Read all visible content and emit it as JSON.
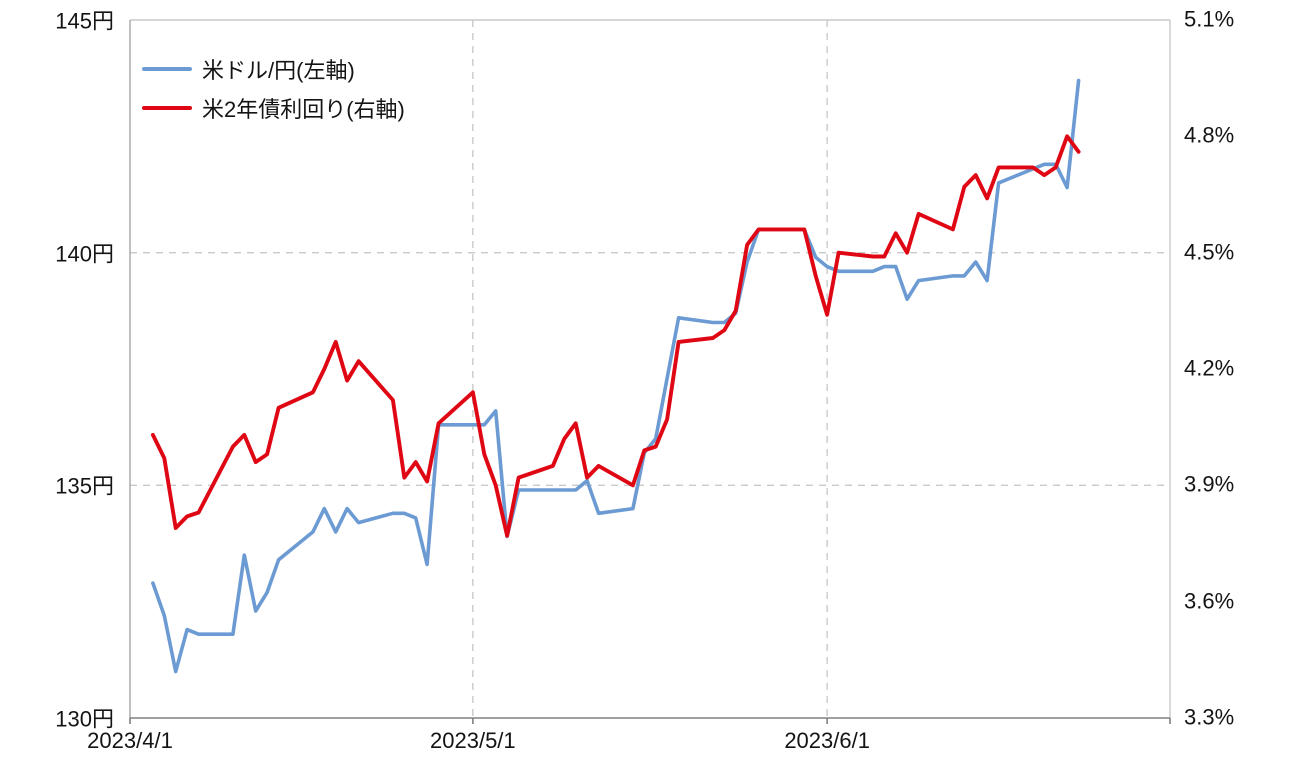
{
  "chart_data": {
    "type": "line",
    "title": "",
    "x": [
      "2023/4/3",
      "2023/4/4",
      "2023/4/5",
      "2023/4/6",
      "2023/4/7",
      "2023/4/10",
      "2023/4/11",
      "2023/4/12",
      "2023/4/13",
      "2023/4/14",
      "2023/4/17",
      "2023/4/18",
      "2023/4/19",
      "2023/4/20",
      "2023/4/21",
      "2023/4/24",
      "2023/4/25",
      "2023/4/26",
      "2023/4/27",
      "2023/4/28",
      "2023/5/1",
      "2023/5/2",
      "2023/5/3",
      "2023/5/4",
      "2023/5/5",
      "2023/5/8",
      "2023/5/9",
      "2023/5/10",
      "2023/5/11",
      "2023/5/12",
      "2023/5/15",
      "2023/5/16",
      "2023/5/17",
      "2023/5/18",
      "2023/5/19",
      "2023/5/22",
      "2023/5/23",
      "2023/5/24",
      "2023/5/25",
      "2023/5/26",
      "2023/5/29",
      "2023/5/30",
      "2023/5/31",
      "2023/6/1",
      "2023/6/2",
      "2023/6/5",
      "2023/6/6",
      "2023/6/7",
      "2023/6/8",
      "2023/6/9",
      "2023/6/12",
      "2023/6/13",
      "2023/6/14",
      "2023/6/15",
      "2023/6/16",
      "2023/6/19",
      "2023/6/20",
      "2023/6/21",
      "2023/6/22",
      "2023/6/23"
    ],
    "series": [
      {
        "name": "米ドル/円(左軸)",
        "axis": "left",
        "color": "#6C9BD3",
        "values": [
          132.9,
          132.2,
          131.0,
          131.9,
          131.8,
          131.8,
          133.5,
          132.3,
          132.7,
          133.4,
          134.0,
          134.5,
          134.0,
          134.5,
          134.2,
          134.4,
          134.4,
          134.3,
          133.3,
          136.3,
          136.3,
          136.3,
          136.6,
          133.9,
          134.9,
          134.9,
          134.9,
          134.9,
          135.1,
          134.4,
          134.5,
          135.7,
          136.0,
          137.3,
          138.6,
          138.5,
          138.5,
          138.7,
          139.8,
          140.5,
          140.5,
          140.5,
          139.9,
          139.7,
          139.6,
          139.6,
          139.7,
          139.7,
          139.0,
          139.4,
          139.5,
          139.5,
          139.8,
          139.4,
          141.5,
          141.8,
          141.9,
          141.9,
          141.4,
          143.7
        ]
      },
      {
        "name": "米2年債利回り(右軸)",
        "axis": "right",
        "color": "#E00714",
        "values": [
          4.03,
          3.97,
          3.79,
          3.82,
          3.83,
          4.0,
          4.03,
          3.96,
          3.98,
          4.1,
          4.14,
          4.2,
          4.27,
          4.17,
          4.22,
          4.12,
          3.92,
          3.96,
          3.91,
          4.06,
          4.14,
          3.98,
          3.9,
          3.77,
          3.92,
          3.95,
          4.02,
          4.06,
          3.92,
          3.95,
          3.9,
          3.99,
          4.0,
          4.07,
          4.27,
          4.28,
          4.3,
          4.35,
          4.52,
          4.56,
          4.56,
          4.56,
          4.44,
          4.34,
          4.5,
          4.49,
          4.49,
          4.55,
          4.5,
          4.6,
          4.56,
          4.67,
          4.7,
          4.64,
          4.72,
          4.72,
          4.7,
          4.72,
          4.8,
          4.76
        ]
      }
    ],
    "left_axis": {
      "unit": "円",
      "min": 130,
      "max": 145,
      "ticks": [
        130,
        135,
        140,
        145
      ],
      "tick_labels": [
        "130円",
        "135円",
        "140円",
        "145円"
      ]
    },
    "right_axis": {
      "unit": "%",
      "min": 3.3,
      "max": 5.1,
      "ticks": [
        3.3,
        3.6,
        3.9,
        4.2,
        4.5,
        4.8,
        5.1
      ],
      "tick_labels": [
        "3.3%",
        "3.6%",
        "3.9%",
        "4.2%",
        "4.5%",
        "4.8%",
        "5.1%"
      ]
    },
    "x_axis": {
      "min": "2023/4/1",
      "max": "2023/7/1",
      "tick_labels": [
        "2023/4/1",
        "2023/5/1",
        "2023/6/1"
      ],
      "tick_positions": [
        "2023/4/1",
        "2023/5/1",
        "2023/6/1"
      ]
    },
    "grid": {
      "h_dashed_at_left_values": [
        135,
        140
      ],
      "v_dashed_at_dates": [
        "2023/5/1",
        "2023/6/1"
      ],
      "grid_on": true
    },
    "legend_position": "top-left"
  },
  "colors": {
    "background": "#ffffff",
    "grid": "#c9c9c9",
    "axis_line": "#a6a6a6",
    "bottom_axis": "#808080",
    "text": "#141414"
  }
}
